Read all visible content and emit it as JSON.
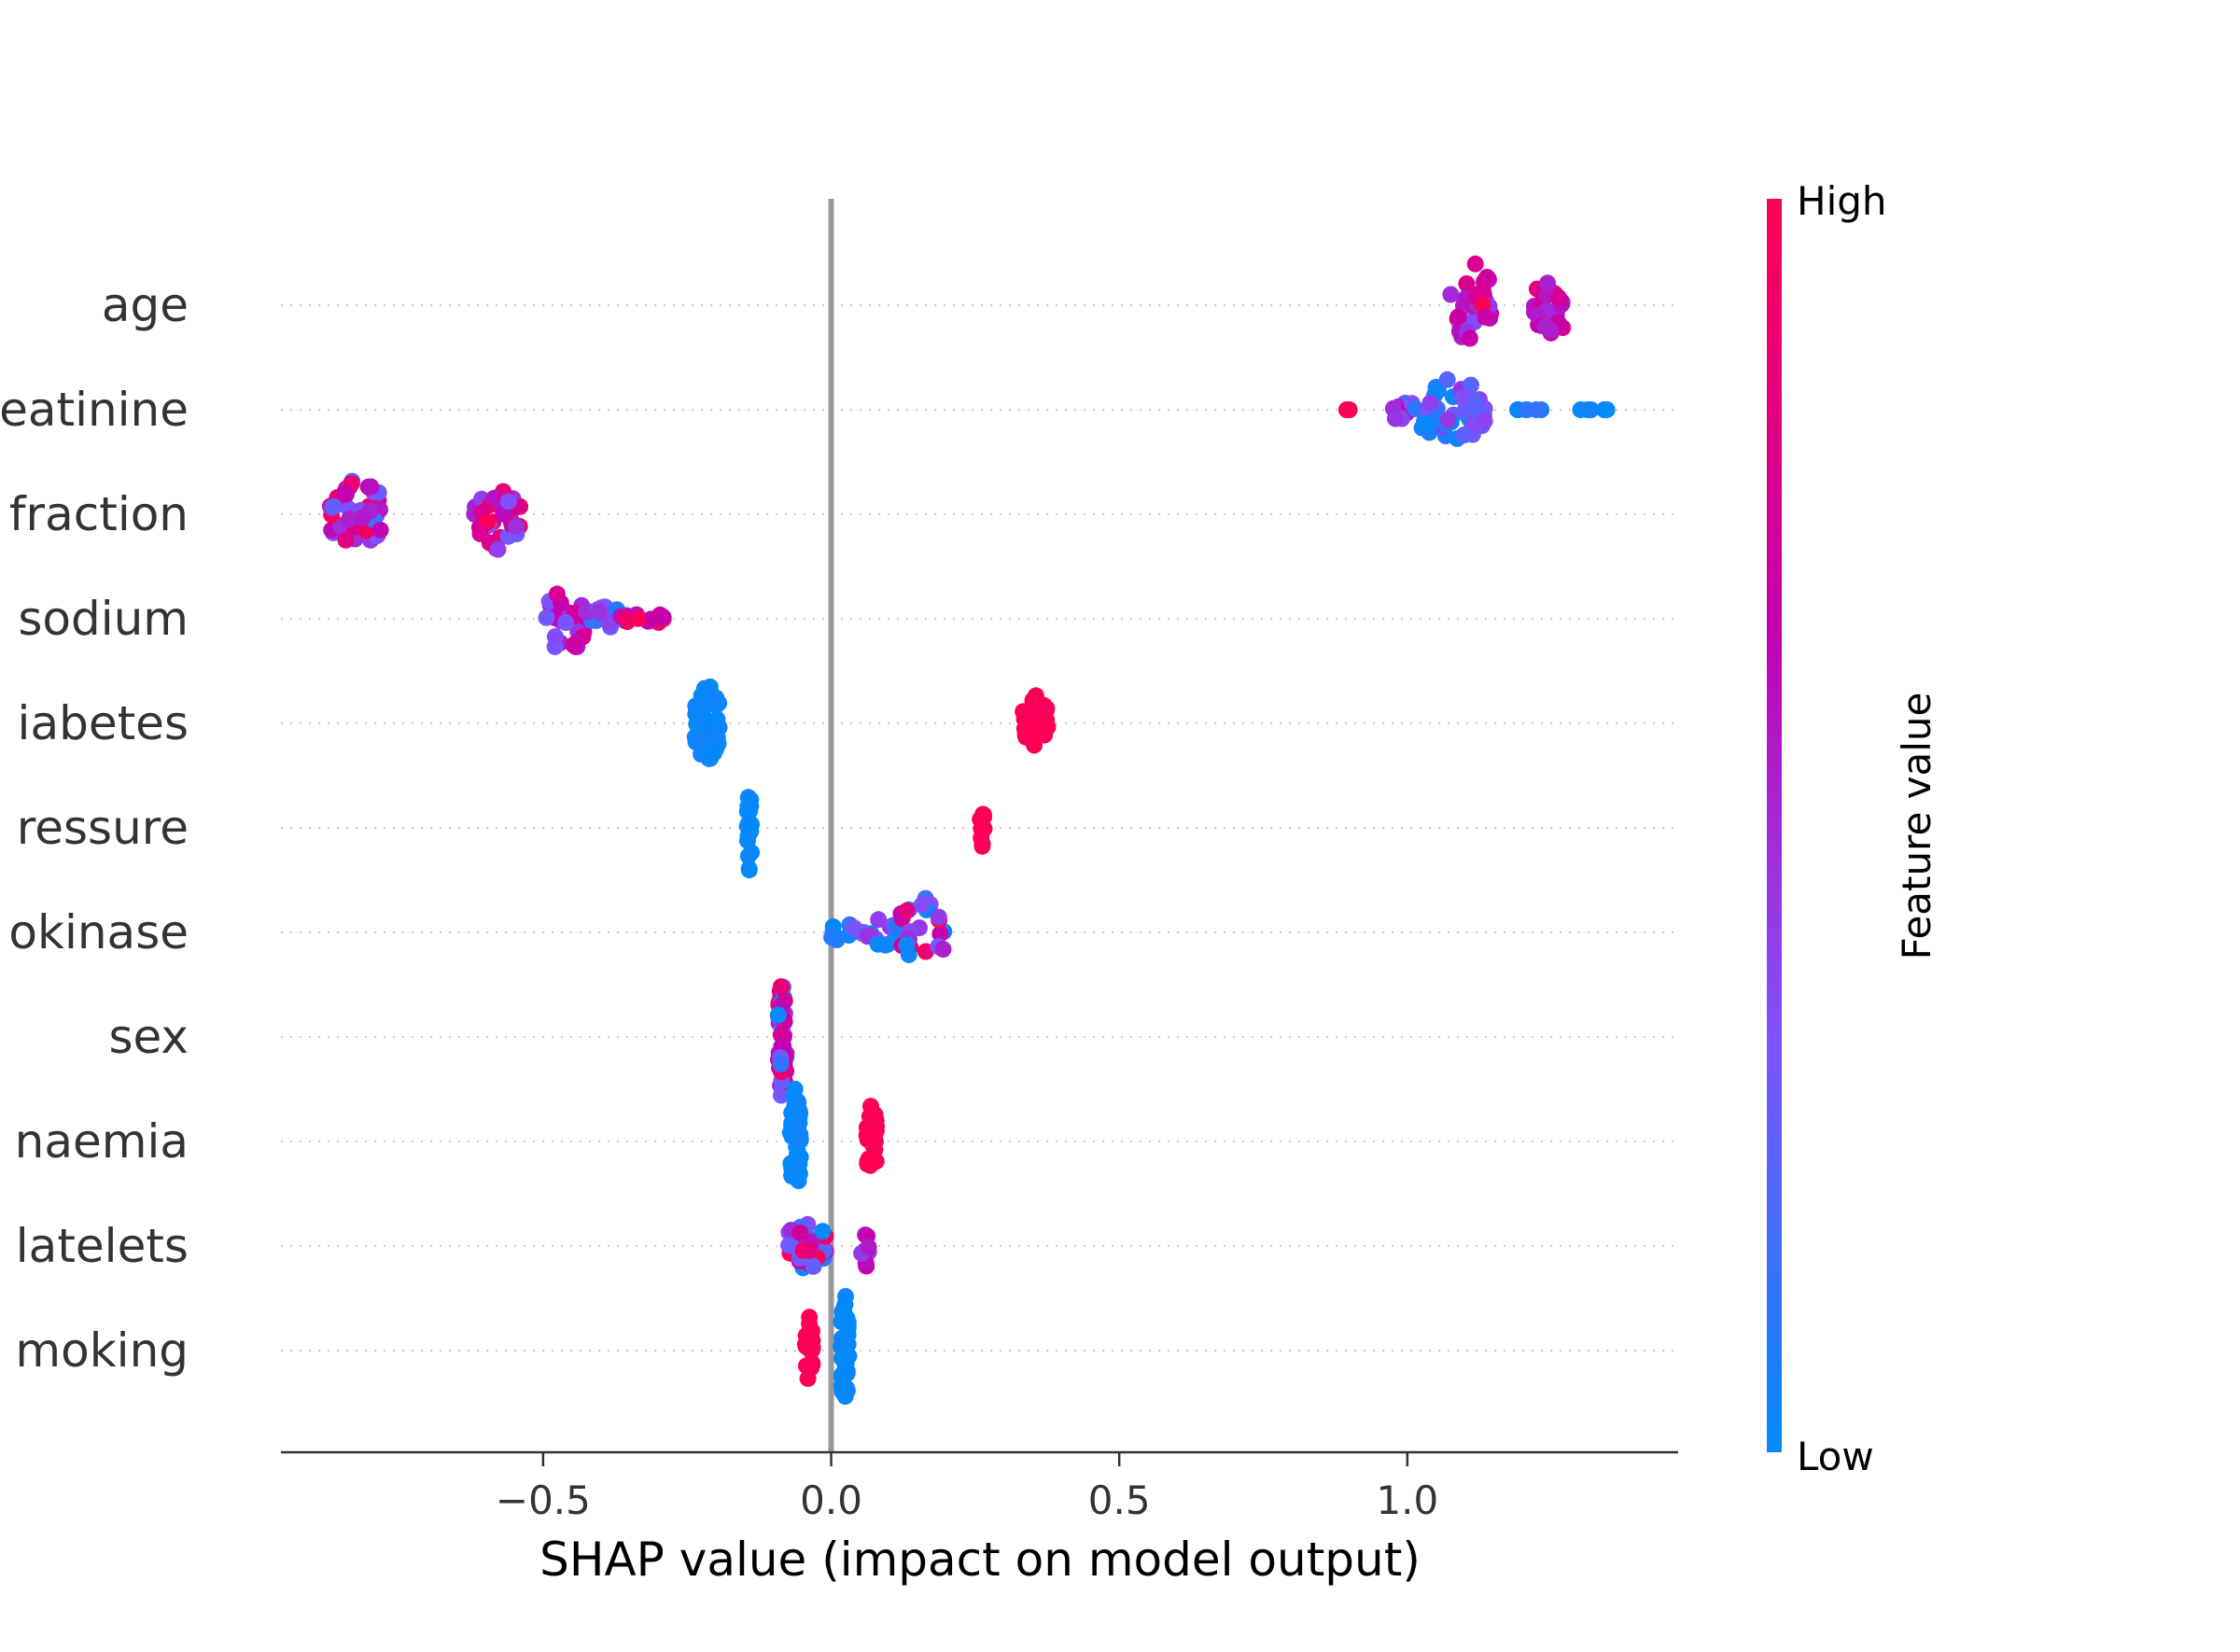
{
  "chart_data": {
    "type": "scatter",
    "subtype": "shap-beeswarm",
    "xlabel": "SHAP value (impact on model output)",
    "xticks": [
      -0.5,
      0.0,
      0.5,
      1.0
    ],
    "xtick_labels": [
      "−0.5",
      "0.0",
      "0.5",
      "1.0"
    ],
    "xlim": [
      -0.955,
      1.47
    ],
    "grid": false,
    "zero_line": true,
    "features": [
      {
        "label": "age",
        "clusters": [
          {
            "x": 1.11,
            "w": 0.035,
            "n": 34,
            "h": 52,
            "c": [
              0.3,
              1.0
            ]
          },
          {
            "x": 1.25,
            "w": 0.03,
            "n": 24,
            "h": 36,
            "c": [
              0.5,
              0.85
            ]
          }
        ]
      },
      {
        "label": "eatinine",
        "clusters": [
          {
            "x": 0.905,
            "w": 0.02,
            "n": 3,
            "h": 0,
            "c": [
              0.95,
              1.0
            ]
          },
          {
            "x": 0.985,
            "w": 0.03,
            "n": 12,
            "h": 12,
            "c": [
              0.1,
              1.0
            ]
          },
          {
            "x": 1.08,
            "w": 0.055,
            "n": 46,
            "h": 40,
            "c": [
              0.0,
              0.5
            ]
          },
          {
            "x": 1.225,
            "w": 0.04,
            "n": 6,
            "h": 0,
            "c": [
              0.0,
              0.15
            ]
          },
          {
            "x": 1.33,
            "w": 0.03,
            "n": 6,
            "h": 0,
            "c": [
              0.0,
              0.1
            ]
          }
        ]
      },
      {
        "label": "fraction",
        "clusters": [
          {
            "x": -0.825,
            "w": 0.045,
            "n": 44,
            "h": 42,
            "c": [
              0.15,
              1.0
            ]
          },
          {
            "x": -0.58,
            "w": 0.04,
            "n": 36,
            "h": 40,
            "c": [
              0.3,
              1.0
            ]
          }
        ]
      },
      {
        "label": "sodium",
        "clusters": [
          {
            "x": -0.46,
            "w": 0.035,
            "n": 26,
            "h": 44,
            "c": [
              0.3,
              0.85
            ]
          },
          {
            "x": -0.39,
            "w": 0.04,
            "n": 20,
            "h": 14,
            "c": [
              0.0,
              0.55
            ]
          },
          {
            "x": -0.315,
            "w": 0.05,
            "n": 12,
            "h": 6,
            "c": [
              0.6,
              1.0
            ]
          }
        ]
      },
      {
        "label": "iabetes",
        "clusters": [
          {
            "x": -0.215,
            "w": 0.022,
            "n": 46,
            "h": 46,
            "c": [
              0.0,
              0.05
            ]
          },
          {
            "x": 0.355,
            "w": 0.022,
            "n": 38,
            "h": 30,
            "c": [
              0.97,
              1.0
            ]
          }
        ]
      },
      {
        "label": "ressure",
        "clusters": [
          {
            "x": -0.142,
            "w": 0.004,
            "n": 20,
            "h": 50,
            "c": [
              0.0,
              0.04
            ]
          },
          {
            "x": 0.262,
            "w": 0.004,
            "n": 10,
            "h": 22,
            "c": [
              0.97,
              1.0
            ]
          }
        ]
      },
      {
        "label": "okinase",
        "clusters": [
          {
            "x": 0.02,
            "w": 0.02,
            "n": 6,
            "h": 12,
            "c": [
              0.0,
              0.2
            ]
          },
          {
            "x": 0.085,
            "w": 0.045,
            "n": 20,
            "h": 18,
            "c": [
              0.0,
              0.6
            ]
          },
          {
            "x": 0.16,
            "w": 0.04,
            "n": 24,
            "h": 40,
            "c": [
              0.0,
              1.0
            ]
          }
        ]
      },
      {
        "label": "sex",
        "clusters": [
          {
            "x": -0.085,
            "w": 0.007,
            "n": 60,
            "h": 72,
            "c": [
              0.0,
              1.0
            ]
          }
        ]
      },
      {
        "label": "naemia",
        "clusters": [
          {
            "x": -0.062,
            "w": 0.009,
            "n": 50,
            "h": 62,
            "c": [
              0.0,
              0.04
            ]
          },
          {
            "x": 0.07,
            "w": 0.009,
            "n": 30,
            "h": 44,
            "c": [
              0.97,
              1.0
            ]
          }
        ]
      },
      {
        "label": "latelets",
        "clusters": [
          {
            "x": -0.04,
            "w": 0.035,
            "n": 30,
            "h": 30,
            "c": [
              0.0,
              1.0
            ]
          },
          {
            "x": 0.06,
            "w": 0.008,
            "n": 8,
            "h": 28,
            "c": [
              0.4,
              0.7
            ]
          }
        ]
      },
      {
        "label": "moking",
        "clusters": [
          {
            "x": -0.038,
            "w": 0.007,
            "n": 24,
            "h": 38,
            "c": [
              0.97,
              1.0
            ]
          },
          {
            "x": 0.024,
            "w": 0.007,
            "n": 40,
            "h": 66,
            "c": [
              0.0,
              0.04
            ]
          }
        ]
      }
    ],
    "colorbar": {
      "high_label": "High",
      "low_label": "Low",
      "title": "Feature value",
      "colors": [
        "#008bfb",
        "#7f52ff",
        "#c500af",
        "#ff0052"
      ]
    }
  }
}
